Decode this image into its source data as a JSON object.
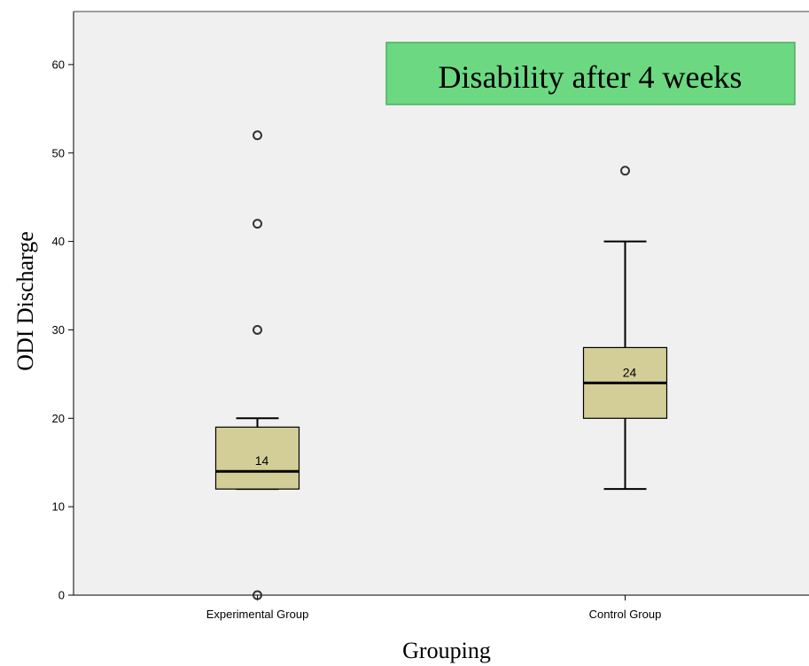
{
  "chart_data": {
    "type": "boxplot",
    "title": "Disability after 4 weeks",
    "xlabel": "Grouping",
    "ylabel": "ODI Discharge",
    "ylim": [
      0,
      66
    ],
    "yticks": [
      0,
      10,
      20,
      30,
      40,
      50,
      60
    ],
    "grid": false,
    "categories": [
      "Experimental Group",
      "Control Group"
    ],
    "boxes": [
      {
        "category": "Experimental Group",
        "whisker_low": 12,
        "q1": 12,
        "median": 14,
        "q3": 19,
        "whisker_high": 20,
        "outliers": [
          0,
          30,
          42,
          52
        ],
        "median_label": "14"
      },
      {
        "category": "Control Group",
        "whisker_low": 12,
        "q1": 20,
        "median": 24,
        "q3": 28,
        "whisker_high": 40,
        "outliers": [
          48
        ],
        "median_label": "24"
      }
    ],
    "colors": {
      "plot_background": "#f0f0f0",
      "box_fill": "#d3ce97",
      "title_box_fill": "#6cd882",
      "title_box_border": "#4caf5e",
      "line": "#000000"
    }
  }
}
